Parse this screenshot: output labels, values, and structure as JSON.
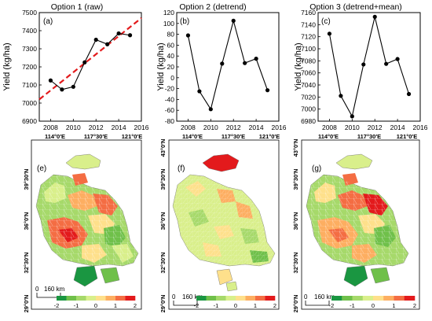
{
  "chart_data": [
    {
      "type": "line",
      "panel_label": "(a)",
      "title": "Option 1 (raw)",
      "ylabel": "Yield (kg/ha)",
      "x": [
        2008,
        2009,
        2010,
        2011,
        2012,
        2013,
        2014,
        2015
      ],
      "values": [
        7125,
        7075,
        7090,
        7225,
        7350,
        7325,
        7385,
        7375
      ],
      "xlim": [
        2007,
        2016
      ],
      "ylim": [
        6900,
        7500
      ],
      "xticks": [
        2008,
        2010,
        2012,
        2014,
        2016
      ],
      "yticks": [
        6900,
        7000,
        7100,
        7200,
        7300,
        7400,
        7500
      ],
      "trend": {
        "style": "dashed",
        "color": "#e31a1c",
        "x": [
          2007,
          2016
        ],
        "y": [
          7020,
          7470
        ]
      }
    },
    {
      "type": "line",
      "panel_label": "(b)",
      "title": "Option 2 (detrend)",
      "ylabel": "Yield (kg/ha)",
      "x": [
        2008,
        2009,
        2010,
        2011,
        2012,
        2013,
        2014,
        2015
      ],
      "values": [
        78,
        -25,
        -58,
        26,
        105,
        27,
        35,
        -23
      ],
      "xlim": [
        2007,
        2016
      ],
      "ylim": [
        -80,
        120
      ],
      "xticks": [
        2008,
        2010,
        2012,
        2014,
        2016
      ],
      "yticks": [
        -80,
        -60,
        -40,
        -20,
        0,
        20,
        40,
        60,
        80,
        100,
        120
      ]
    },
    {
      "type": "line",
      "panel_label": "(c)",
      "title": "Option 3 (detrend+mean)",
      "ylabel": "Yield (kg/ha)",
      "x": [
        2008,
        2009,
        2010,
        2011,
        2012,
        2013,
        2014,
        2015
      ],
      "values": [
        7125,
        7022,
        6988,
        7074,
        7153,
        7075,
        7083,
        7025
      ],
      "xlim": [
        2007,
        2016
      ],
      "ylim": [
        6980,
        7160
      ],
      "xticks": [
        2008,
        2010,
        2012,
        2014,
        2016
      ],
      "yticks": [
        6980,
        7000,
        7020,
        7040,
        7060,
        7080,
        7100,
        7120,
        7140,
        7160
      ]
    }
  ],
  "maps": [
    {
      "panel_label": "(e)"
    },
    {
      "panel_label": "(f)"
    },
    {
      "panel_label": "(g)"
    }
  ],
  "map_axes": {
    "lon_labels": [
      "114°0′E",
      "117°30′E",
      "121°0′E"
    ],
    "lat_labels": [
      "43°0′N",
      "39°30′N",
      "36°0′N",
      "32°30′N",
      "29°0′N"
    ]
  },
  "scale_bar": {
    "zero": "0",
    "label": "160 km"
  },
  "legend": {
    "ticks": [
      "-2",
      "-1",
      "0",
      "1",
      "2"
    ],
    "colors": [
      "#1a9641",
      "#6fc04a",
      "#a6d96a",
      "#d9ef8b",
      "#fee08b",
      "#fdae61",
      "#f46d43",
      "#e31a1c"
    ]
  },
  "colors": {
    "line": "#000000",
    "trend": "#e31a1c"
  }
}
